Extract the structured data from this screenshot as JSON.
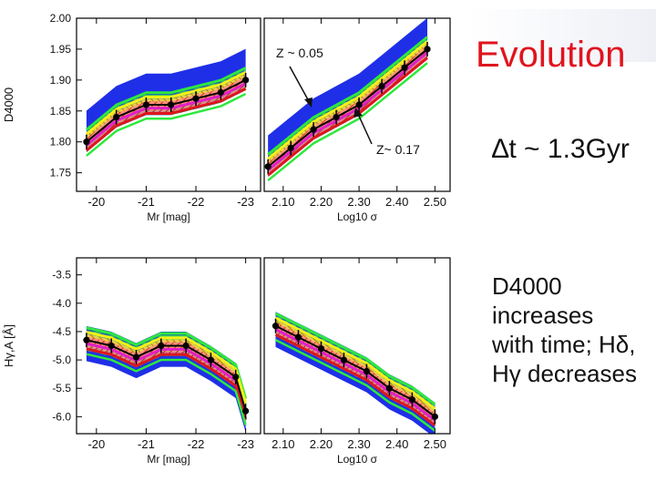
{
  "title": "Evolution",
  "delta_t": "∆t ~ 1.3Gyr",
  "description": [
    "D4000",
    "increases",
    "with time; Hδ,",
    "Hγ decreases"
  ],
  "annotations": {
    "z_low": "Z ~ 0.05",
    "z_high": "Z~ 0.17"
  },
  "colors": {
    "title": "#e0141e",
    "blue": "#1f2fe8",
    "green": "#2ee83c",
    "yellow": "#f7f016",
    "red": "#e0141e",
    "magenta": "#e020c8",
    "orange": "#f0a020"
  },
  "chart_data": [
    {
      "type": "line",
      "panel": "top-left",
      "xlabel": "Mr [mag]",
      "ylabel": "D4000",
      "xlim": [
        -19.6,
        -23.3
      ],
      "ylim": [
        1.72,
        2.0
      ],
      "xticks": [
        "-20",
        "-21",
        "-22",
        "-23"
      ],
      "xtick_values": [
        -20,
        -21,
        -22,
        -23
      ],
      "yticks": [
        "2.00",
        "1.95",
        "1.90",
        "1.85",
        "1.80",
        "1.75"
      ],
      "ytick_values": [
        2.0,
        1.95,
        1.9,
        1.85,
        1.8,
        1.75
      ],
      "series": [
        {
          "name": "black",
          "x": [
            -19.8,
            -20.4,
            -21.0,
            -21.5,
            -22.0,
            -22.5,
            -23.0
          ],
          "y": [
            1.8,
            1.84,
            1.86,
            1.86,
            1.87,
            1.88,
            1.9
          ]
        }
      ]
    },
    {
      "type": "line",
      "panel": "top-right",
      "xlabel": "Log10 σ",
      "ylabel": "",
      "xlim": [
        2.05,
        2.54
      ],
      "ylim": [
        1.72,
        2.0
      ],
      "xticks": [
        "2.10",
        "2.20",
        "2.30",
        "2.40",
        "2.50"
      ],
      "xtick_values": [
        2.1,
        2.2,
        2.3,
        2.4,
        2.5
      ],
      "series": [
        {
          "name": "black",
          "x": [
            2.06,
            2.12,
            2.18,
            2.24,
            2.3,
            2.36,
            2.42,
            2.48
          ],
          "y": [
            1.76,
            1.79,
            1.82,
            1.84,
            1.86,
            1.89,
            1.92,
            1.95
          ]
        }
      ]
    },
    {
      "type": "line",
      "panel": "bottom-left",
      "xlabel": "Mr [mag]",
      "ylabel": "Hγ,A [Å]",
      "xlim": [
        -19.6,
        -23.3
      ],
      "ylim": [
        -6.3,
        -3.2
      ],
      "xticks": [
        "-20",
        "-21",
        "-22",
        "-23"
      ],
      "xtick_values": [
        -20,
        -21,
        -22,
        -23
      ],
      "yticks": [
        "-3.5",
        "-4.0",
        "-4.5",
        "-5.0",
        "-5.5",
        "-6.0"
      ],
      "ytick_values": [
        -3.5,
        -4.0,
        -4.5,
        -5.0,
        -5.5,
        -6.0
      ],
      "series": [
        {
          "name": "black",
          "x": [
            -19.8,
            -20.3,
            -20.8,
            -21.3,
            -21.8,
            -22.3,
            -22.8,
            -23.0
          ],
          "y": [
            -4.65,
            -4.75,
            -4.95,
            -4.75,
            -4.75,
            -5.0,
            -5.3,
            -5.9
          ]
        }
      ]
    },
    {
      "type": "line",
      "panel": "bottom-right",
      "xlabel": "Log10 σ",
      "ylabel": "",
      "xlim": [
        2.05,
        2.54
      ],
      "ylim": [
        -6.3,
        -3.2
      ],
      "xticks": [
        "2.10",
        "2.20",
        "2.30",
        "2.40",
        "2.50"
      ],
      "xtick_values": [
        2.1,
        2.2,
        2.3,
        2.4,
        2.5
      ],
      "series": [
        {
          "name": "black",
          "x": [
            2.08,
            2.14,
            2.2,
            2.26,
            2.32,
            2.38,
            2.44,
            2.5
          ],
          "y": [
            -4.4,
            -4.6,
            -4.8,
            -5.0,
            -5.2,
            -5.5,
            -5.7,
            -6.0
          ]
        }
      ]
    }
  ]
}
